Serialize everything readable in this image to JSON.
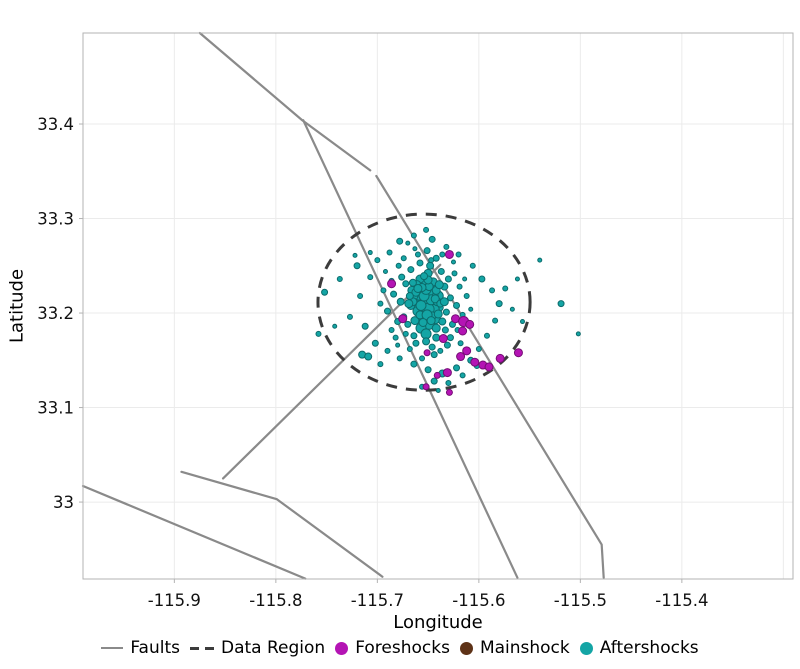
{
  "chart_data": {
    "type": "scatter",
    "title": "",
    "xlabel": "Longitude",
    "ylabel": "Latitude",
    "xlim": [
      -115.99,
      -115.2905
    ],
    "ylim": [
      32.9186,
      33.4963
    ],
    "grid": true,
    "background": "#ffffff",
    "grid_color": "#ebebeb",
    "border_color": "#b3b3b3",
    "tick_color": "#b3b3b3",
    "tick_label_color": "#111111",
    "xticks": {
      "values": [
        -115.9,
        -115.8,
        -115.7,
        -115.6,
        -115.5,
        -115.4
      ],
      "labels": [
        "-115.9",
        "-115.8",
        "-115.7",
        "-115.6",
        "-115.5",
        "-115.4"
      ]
    },
    "extra_x_gridlines": [
      -115.3
    ],
    "yticks": {
      "values": [
        33.0,
        33.1,
        33.2,
        33.3,
        33.4
      ],
      "labels": [
        "33",
        "33.1",
        "33.2",
        "33.3",
        "33.4"
      ]
    },
    "faults": {
      "label": "Faults",
      "color": "#8a8a8a",
      "width": 2.2,
      "polylines": [
        [
          [
            -115.8749,
            33.4963
          ],
          [
            -115.774,
            33.404
          ],
          [
            -115.707,
            33.351
          ]
        ],
        [
          [
            -115.701,
            33.345
          ],
          [
            -115.479,
            32.955
          ],
          [
            -115.477,
            32.92
          ]
        ],
        [
          [
            -115.773,
            33.404
          ],
          [
            -115.562,
            32.92
          ]
        ],
        [
          [
            -115.638,
            33.251
          ],
          [
            -115.852,
            33.025
          ]
        ],
        [
          [
            -115.893,
            33.032
          ],
          [
            -115.799,
            33.003
          ],
          [
            -115.695,
            32.921
          ]
        ],
        [
          [
            -115.99,
            33.017
          ],
          [
            -115.771,
            32.919
          ]
        ]
      ]
    },
    "data_region": {
      "label": "Data Region",
      "color": "#3c3c3c",
      "width": 3,
      "dash": "11 9",
      "center": [
        -115.654,
        33.2115
      ],
      "rx_deg": 0.1045,
      "ry_deg": 0.0932
    },
    "point_format": "[longitude, latitude, marker_radius_px]",
    "series": [
      {
        "name": "Foreshocks",
        "z": 3,
        "color": "#b414b4",
        "stroke": "#750d75",
        "points": [
          [
            -115.629,
            33.262,
            4
          ],
          [
            -115.686,
            33.231,
            4
          ],
          [
            -115.675,
            33.194,
            4
          ],
          [
            -115.623,
            33.194,
            4
          ],
          [
            -115.615,
            33.191,
            5
          ],
          [
            -115.609,
            33.188,
            4
          ],
          [
            -115.616,
            33.181,
            4
          ],
          [
            -115.635,
            33.173,
            4
          ],
          [
            -115.651,
            33.158,
            3
          ],
          [
            -115.612,
            33.16,
            4
          ],
          [
            -115.618,
            33.154,
            4
          ],
          [
            -115.604,
            33.148,
            4
          ],
          [
            -115.596,
            33.145,
            4
          ],
          [
            -115.59,
            33.143,
            4
          ],
          [
            -115.631,
            33.137,
            4
          ],
          [
            -115.641,
            33.134,
            3
          ],
          [
            -115.652,
            33.122,
            3
          ],
          [
            -115.579,
            33.152,
            4
          ],
          [
            -115.629,
            33.116,
            3
          ],
          [
            -115.561,
            33.158,
            4
          ]
        ]
      },
      {
        "name": "Mainshock",
        "z": 1,
        "color": "#5e3217",
        "stroke": "#2e1708",
        "points": [
          [
            -115.65,
            33.205,
            6.5
          ]
        ]
      },
      {
        "name": "Aftershocks",
        "z": 2,
        "color": "#14a5a5",
        "stroke": "#0c6b6b",
        "points": [
          [
            -115.652,
            33.216,
            7
          ],
          [
            -115.656,
            33.221,
            6
          ],
          [
            -115.647,
            33.224,
            5
          ],
          [
            -115.662,
            33.214,
            6
          ],
          [
            -115.644,
            33.211,
            6
          ],
          [
            -115.654,
            33.206,
            7
          ],
          [
            -115.648,
            33.2,
            6
          ],
          [
            -115.66,
            33.202,
            5
          ],
          [
            -115.64,
            33.218,
            5
          ],
          [
            -115.666,
            33.224,
            4
          ],
          [
            -115.652,
            33.23,
            5
          ],
          [
            -115.645,
            33.233,
            4
          ],
          [
            -115.658,
            33.236,
            4
          ],
          [
            -115.65,
            33.242,
            4
          ],
          [
            -115.653,
            33.194,
            6
          ],
          [
            -115.643,
            33.194,
            5
          ],
          [
            -115.663,
            33.192,
            4
          ],
          [
            -115.649,
            33.188,
            5
          ],
          [
            -115.657,
            33.184,
            5
          ],
          [
            -115.642,
            33.184,
            4
          ],
          [
            -115.652,
            33.178,
            5
          ],
          [
            -115.661,
            33.23,
            4
          ],
          [
            -115.639,
            33.206,
            4
          ],
          [
            -115.667,
            33.208,
            4
          ],
          [
            -115.646,
            33.218,
            6
          ],
          [
            -115.655,
            33.213,
            6
          ],
          [
            -115.651,
            33.222,
            6
          ],
          [
            -115.642,
            33.224,
            4
          ],
          [
            -115.659,
            33.219,
            5
          ],
          [
            -115.648,
            33.207,
            6
          ],
          [
            -115.664,
            33.218,
            4
          ],
          [
            -115.644,
            33.204,
            5
          ],
          [
            -115.653,
            33.21,
            6
          ],
          [
            -115.65,
            33.204,
            6
          ],
          [
            -115.657,
            33.208,
            5
          ],
          [
            -115.647,
            33.214,
            5
          ],
          [
            -115.654,
            33.218,
            5
          ],
          [
            -115.652,
            33.225,
            5
          ],
          [
            -115.649,
            33.228,
            4
          ],
          [
            -115.656,
            33.227,
            4
          ],
          [
            -115.641,
            33.212,
            4
          ],
          [
            -115.665,
            33.212,
            4
          ],
          [
            -115.646,
            33.197,
            4
          ],
          [
            -115.658,
            33.198,
            4
          ],
          [
            -115.651,
            33.198,
            5
          ],
          [
            -115.643,
            33.215,
            4
          ],
          [
            -115.662,
            33.222,
            4
          ],
          [
            -115.64,
            33.199,
            4
          ],
          [
            -115.655,
            33.19,
            4
          ],
          [
            -115.647,
            33.192,
            4
          ],
          [
            -115.66,
            33.226,
            4
          ],
          [
            -115.638,
            33.21,
            3.5
          ],
          [
            -115.668,
            33.218,
            3.5
          ],
          [
            -115.65,
            33.235,
            4
          ],
          [
            -115.654,
            33.239,
            3.5
          ],
          [
            -115.634,
            33.228,
            3.5
          ],
          [
            -115.672,
            33.231,
            3
          ],
          [
            -115.628,
            33.216,
            3
          ],
          [
            -115.677,
            33.212,
            3.5
          ],
          [
            -115.632,
            33.201,
            3
          ],
          [
            -115.674,
            33.196,
            3
          ],
          [
            -115.636,
            33.191,
            3.5
          ],
          [
            -115.67,
            33.188,
            3
          ],
          [
            -115.642,
            33.174,
            3.5
          ],
          [
            -115.664,
            33.176,
            3
          ],
          [
            -115.652,
            33.17,
            3.5
          ],
          [
            -115.63,
            33.236,
            3
          ],
          [
            -115.676,
            33.238,
            3
          ],
          [
            -115.637,
            33.244,
            3
          ],
          [
            -115.667,
            33.246,
            3
          ],
          [
            -115.648,
            33.25,
            3.5
          ],
          [
            -115.658,
            33.253,
            3
          ],
          [
            -115.626,
            33.188,
            3
          ],
          [
            -115.68,
            33.191,
            3
          ],
          [
            -115.622,
            33.208,
            3
          ],
          [
            -115.684,
            33.22,
            3
          ],
          [
            -115.634,
            33.212,
            4
          ],
          [
            -115.669,
            33.21,
            4
          ],
          [
            -115.639,
            33.23,
            4
          ],
          [
            -115.665,
            33.232,
            3.5
          ],
          [
            -115.633,
            33.182,
            3
          ],
          [
            -115.662,
            33.168,
            3
          ],
          [
            -115.646,
            33.164,
            3
          ],
          [
            -115.672,
            33.178,
            2.5
          ],
          [
            -115.628,
            33.174,
            3
          ],
          [
            -115.619,
            33.228,
            2.5
          ],
          [
            -115.686,
            33.234,
            2.5
          ],
          [
            -115.624,
            33.242,
            2.5
          ],
          [
            -115.679,
            33.25,
            2.5
          ],
          [
            -115.642,
            33.258,
            3
          ],
          [
            -115.66,
            33.262,
            2.5
          ],
          [
            -115.651,
            33.266,
            3
          ],
          [
            -115.616,
            33.198,
            2.5
          ],
          [
            -115.69,
            33.202,
            3
          ],
          [
            -115.621,
            33.182,
            2.5
          ],
          [
            -115.682,
            33.174,
            2.5
          ],
          [
            -115.631,
            33.166,
            3
          ],
          [
            -115.668,
            33.162,
            2.5
          ],
          [
            -115.644,
            33.156,
            3
          ],
          [
            -115.656,
            33.152,
            2.5
          ],
          [
            -115.612,
            33.218,
            2.5
          ],
          [
            -115.694,
            33.224,
            2.5
          ],
          [
            -115.614,
            33.236,
            2
          ],
          [
            -115.692,
            33.244,
            2
          ],
          [
            -115.636,
            33.262,
            2.5
          ],
          [
            -115.674,
            33.258,
            2.5
          ],
          [
            -115.618,
            33.168,
            2.5
          ],
          [
            -115.686,
            33.182,
            2.5
          ],
          [
            -115.608,
            33.204,
            2
          ],
          [
            -115.697,
            33.21,
            2.5
          ],
          [
            -115.625,
            33.254,
            2
          ],
          [
            -115.68,
            33.166,
            2
          ],
          [
            -115.638,
            33.16,
            2.5
          ],
          [
            -115.663,
            33.268,
            2
          ],
          [
            -115.647,
            33.256,
            2.5
          ],
          [
            -115.752,
            33.222,
            3
          ],
          [
            -115.737,
            33.236,
            2.5
          ],
          [
            -115.72,
            33.25,
            3
          ],
          [
            -115.727,
            33.196,
            2.5
          ],
          [
            -115.712,
            33.186,
            3
          ],
          [
            -115.717,
            33.218,
            2.5
          ],
          [
            -115.707,
            33.238,
            2.5
          ],
          [
            -115.702,
            33.168,
            3
          ],
          [
            -115.715,
            33.156,
            3.5
          ],
          [
            -115.709,
            33.154,
            3.5
          ],
          [
            -115.7,
            33.256,
            2.5
          ],
          [
            -115.688,
            33.264,
            2.5
          ],
          [
            -115.678,
            33.276,
            3
          ],
          [
            -115.664,
            33.282,
            2.5
          ],
          [
            -115.646,
            33.278,
            3
          ],
          [
            -115.632,
            33.27,
            2.5
          ],
          [
            -115.62,
            33.262,
            2.5
          ],
          [
            -115.606,
            33.25,
            2.5
          ],
          [
            -115.597,
            33.236,
            3
          ],
          [
            -115.587,
            33.224,
            2.5
          ],
          [
            -115.58,
            33.21,
            3
          ],
          [
            -115.584,
            33.192,
            2.5
          ],
          [
            -115.574,
            33.226,
            2.5
          ],
          [
            -115.567,
            33.204,
            2
          ],
          [
            -115.592,
            33.176,
            2.5
          ],
          [
            -115.6,
            33.162,
            2.5
          ],
          [
            -115.608,
            33.15,
            3
          ],
          [
            -115.622,
            33.142,
            3
          ],
          [
            -115.636,
            33.136,
            3.5
          ],
          [
            -115.65,
            33.14,
            3
          ],
          [
            -115.664,
            33.146,
            3
          ],
          [
            -115.678,
            33.152,
            2.5
          ],
          [
            -115.69,
            33.16,
            2.5
          ],
          [
            -115.644,
            33.128,
            3
          ],
          [
            -115.63,
            33.126,
            2.5
          ],
          [
            -115.656,
            33.122,
            2.5
          ],
          [
            -115.616,
            33.134,
            2.5
          ],
          [
            -115.602,
            33.144,
            2.5
          ],
          [
            -115.64,
            33.118,
            2
          ],
          [
            -115.722,
            33.261,
            2
          ],
          [
            -115.742,
            33.186,
            2
          ],
          [
            -115.562,
            33.236,
            2
          ],
          [
            -115.557,
            33.191,
            2
          ],
          [
            -115.707,
            33.264,
            2
          ],
          [
            -115.697,
            33.146,
            2.5
          ],
          [
            -115.519,
            33.21,
            3
          ],
          [
            -115.54,
            33.256,
            2
          ],
          [
            -115.502,
            33.178,
            2
          ],
          [
            -115.758,
            33.178,
            2.5
          ],
          [
            -115.652,
            33.288,
            2.5
          ],
          [
            -115.67,
            33.274,
            2
          ]
        ]
      }
    ],
    "legend": {
      "position": "bottom",
      "items": [
        {
          "label": "Faults",
          "swatch": "line",
          "color": "#8a8a8a"
        },
        {
          "label": "Data Region",
          "swatch": "dashes",
          "color": "#3c3c3c"
        },
        {
          "label": "Foreshocks",
          "swatch": "dot",
          "color": "#b414b4"
        },
        {
          "label": "Mainshock",
          "swatch": "dot",
          "color": "#5e3217"
        },
        {
          "label": "Aftershocks",
          "swatch": "dot",
          "color": "#14a5a5"
        }
      ]
    }
  }
}
